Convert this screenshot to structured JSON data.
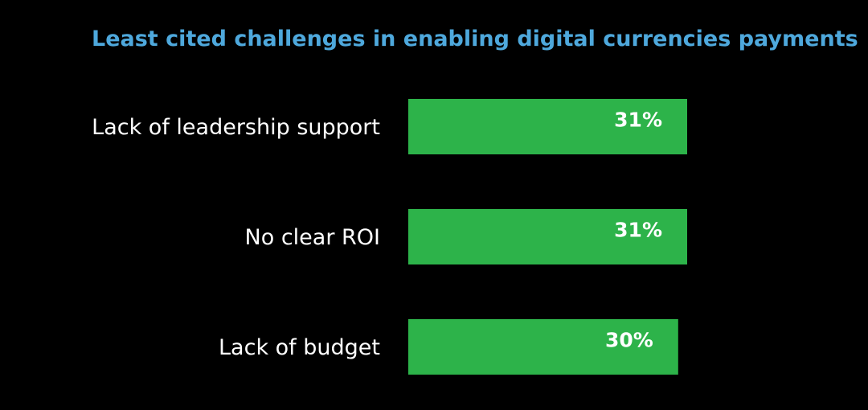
{
  "chart_data": {
    "type": "bar",
    "orientation": "horizontal",
    "title": "Least cited challenges in enabling digital currencies payments",
    "categories": [
      "Lack of leadership support",
      "No clear ROI",
      "Lack of budget"
    ],
    "values": [
      31,
      31,
      30
    ],
    "value_labels": [
      "31%",
      "31%",
      "30%"
    ],
    "unit": "%",
    "xlabel": "",
    "ylabel": "",
    "grid": false,
    "legend": "none"
  },
  "colors": {
    "background": "#000000",
    "title": "#4ea8dc",
    "bar": "#2db34a",
    "category_text": "#ffffff",
    "value_text": "#ffffff"
  }
}
